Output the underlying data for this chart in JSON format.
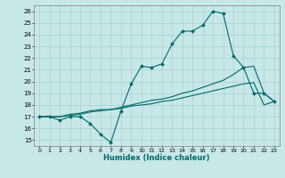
{
  "xlabel": "Humidex (Indice chaleur)",
  "bg_color": "#c8e8e8",
  "grid_color": "#a8d0d0",
  "line_color": "#006868",
  "xlim": [
    -0.5,
    23.5
  ],
  "ylim": [
    14.5,
    26.5
  ],
  "xticks": [
    0,
    1,
    2,
    3,
    4,
    5,
    6,
    7,
    8,
    9,
    10,
    11,
    12,
    13,
    14,
    15,
    16,
    17,
    18,
    19,
    20,
    21,
    22,
    23
  ],
  "yticks": [
    15,
    16,
    17,
    18,
    19,
    20,
    21,
    22,
    23,
    24,
    25,
    26
  ],
  "line1_x": [
    0,
    1,
    2,
    3,
    4,
    5,
    6,
    7,
    8,
    9,
    10,
    11,
    12,
    13,
    14,
    15,
    16,
    17,
    18,
    19,
    20,
    21,
    22,
    23
  ],
  "line1_y": [
    17.0,
    17.0,
    16.7,
    17.0,
    17.0,
    16.4,
    15.5,
    14.8,
    17.5,
    19.8,
    21.3,
    21.2,
    21.5,
    23.2,
    24.3,
    24.3,
    24.8,
    26.0,
    25.8,
    22.2,
    21.2,
    19.0,
    19.0,
    18.3
  ],
  "line2_x": [
    0,
    1,
    2,
    3,
    4,
    5,
    6,
    7,
    8,
    9,
    10,
    11,
    12,
    13,
    14,
    15,
    16,
    17,
    18,
    19,
    20,
    21,
    22,
    23
  ],
  "line2_y": [
    17.0,
    17.0,
    17.0,
    17.2,
    17.3,
    17.5,
    17.6,
    17.6,
    17.8,
    18.0,
    18.2,
    18.4,
    18.5,
    18.7,
    19.0,
    19.2,
    19.5,
    19.8,
    20.1,
    20.6,
    21.2,
    21.3,
    19.0,
    18.3
  ],
  "line3_x": [
    0,
    1,
    2,
    3,
    4,
    5,
    6,
    7,
    8,
    9,
    10,
    11,
    12,
    13,
    14,
    15,
    16,
    17,
    18,
    19,
    20,
    21,
    22,
    23
  ],
  "line3_y": [
    17.0,
    17.0,
    17.0,
    17.1,
    17.2,
    17.4,
    17.5,
    17.6,
    17.7,
    17.9,
    18.0,
    18.1,
    18.3,
    18.4,
    18.6,
    18.8,
    19.0,
    19.2,
    19.4,
    19.6,
    19.8,
    19.9,
    18.0,
    18.3
  ]
}
